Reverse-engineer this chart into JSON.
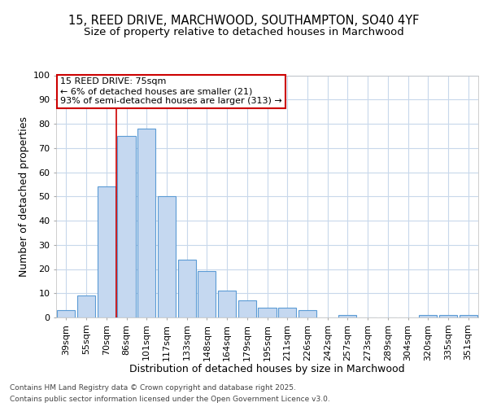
{
  "title_line1": "15, REED DRIVE, MARCHWOOD, SOUTHAMPTON, SO40 4YF",
  "title_line2": "Size of property relative to detached houses in Marchwood",
  "xlabel": "Distribution of detached houses by size in Marchwood",
  "ylabel": "Number of detached properties",
  "categories": [
    "39sqm",
    "55sqm",
    "70sqm",
    "86sqm",
    "101sqm",
    "117sqm",
    "133sqm",
    "148sqm",
    "164sqm",
    "179sqm",
    "195sqm",
    "211sqm",
    "226sqm",
    "242sqm",
    "257sqm",
    "273sqm",
    "289sqm",
    "304sqm",
    "320sqm",
    "335sqm",
    "351sqm"
  ],
  "values": [
    3,
    9,
    54,
    75,
    78,
    50,
    24,
    19,
    11,
    7,
    4,
    4,
    3,
    0,
    1,
    0,
    0,
    0,
    1,
    1,
    1
  ],
  "bar_color": "#c5d8f0",
  "bar_edge_color": "#5b9bd5",
  "red_line_x": 2.5,
  "annotation_title": "15 REED DRIVE: 75sqm",
  "annotation_line1": "← 6% of detached houses are smaller (21)",
  "annotation_line2": "93% of semi-detached houses are larger (313) →",
  "annotation_box_facecolor": "#ffffff",
  "annotation_box_edgecolor": "#cc0000",
  "footer_line1": "Contains HM Land Registry data © Crown copyright and database right 2025.",
  "footer_line2": "Contains public sector information licensed under the Open Government Licence v3.0.",
  "ylim": [
    0,
    100
  ],
  "yticks": [
    0,
    10,
    20,
    30,
    40,
    50,
    60,
    70,
    80,
    90,
    100
  ],
  "fig_bg_color": "#ffffff",
  "plot_bg_color": "#ffffff",
  "grid_color": "#c8d8eb",
  "title_fontsize": 10.5,
  "subtitle_fontsize": 9.5,
  "axis_label_fontsize": 9,
  "tick_fontsize": 8,
  "annotation_fontsize": 8,
  "footer_fontsize": 6.5
}
